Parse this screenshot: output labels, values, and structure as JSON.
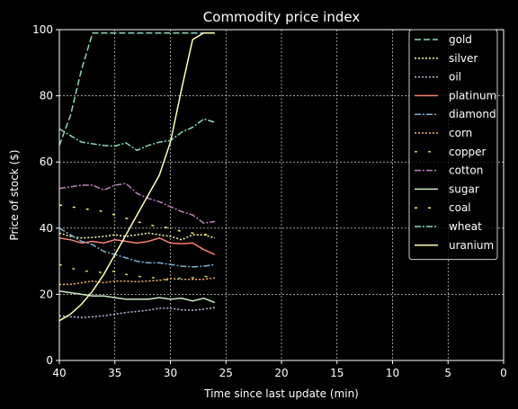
{
  "chart_data": {
    "type": "line",
    "title": "Commodity price index",
    "xlabel": "Time since last update (min)",
    "ylabel": "Price of stock ($)",
    "xlim": [
      40,
      0
    ],
    "ylim": [
      0,
      100
    ],
    "x_inverted": true,
    "grid": true,
    "legend_position": "top-right",
    "xticks": [
      40,
      35,
      30,
      25,
      20,
      15,
      10,
      5,
      0
    ],
    "yticks": [
      0,
      20,
      40,
      60,
      80,
      100
    ],
    "x": [
      40,
      39,
      38,
      37,
      36,
      35,
      34,
      33,
      32,
      31,
      30,
      29,
      28,
      27,
      26
    ],
    "series": [
      {
        "name": "gold",
        "color": "#8dd3c7",
        "dash": "dashed",
        "values": [
          65,
          74,
          88,
          99,
          99,
          99,
          99,
          99,
          99,
          99,
          99,
          99,
          99,
          99,
          99
        ]
      },
      {
        "name": "silver",
        "color": "#feffb3",
        "dash": "dotted",
        "values": [
          38.5,
          37.5,
          37,
          37.2,
          37.5,
          38,
          37.5,
          38,
          38.5,
          38,
          37.5,
          36.5,
          38,
          38,
          37
        ]
      },
      {
        "name": "oil",
        "color": "#bfbbd9",
        "dash": "dotted",
        "values": [
          13.5,
          13.2,
          13,
          13.2,
          13.5,
          14,
          14.5,
          14.8,
          15.2,
          15.8,
          15.8,
          15.3,
          15.2,
          15.5,
          16
        ]
      },
      {
        "name": "platinum",
        "color": "#fa8174",
        "dash": "solid",
        "values": [
          37,
          36.5,
          35.5,
          36,
          35.5,
          36.5,
          36,
          35.5,
          36,
          37,
          35.5,
          35.3,
          35.5,
          33.5,
          32
        ]
      },
      {
        "name": "diamond",
        "color": "#81b1d2",
        "dash": "dashdot",
        "values": [
          40,
          38,
          36,
          35,
          33,
          32,
          31,
          30,
          29.5,
          29.5,
          29,
          28.5,
          28.3,
          28.5,
          29
        ]
      },
      {
        "name": "corn",
        "color": "#fdb462",
        "dash": "dotted",
        "values": [
          23,
          23,
          23.5,
          24,
          23.5,
          24,
          24,
          23.8,
          24,
          24.2,
          24.8,
          24.5,
          24.5,
          24.5,
          25
        ]
      },
      {
        "name": "copper",
        "color": "#b3de69",
        "dash": "loosedash",
        "values": [
          29,
          28,
          27,
          27,
          26.5,
          27,
          26,
          25.5,
          25,
          25,
          24,
          25,
          25,
          25.5,
          25
        ]
      },
      {
        "name": "cotton",
        "color": "#bc82bd",
        "dash": "dashdot",
        "values": [
          52,
          52.5,
          53,
          53,
          51.5,
          53,
          53.5,
          50.5,
          49,
          48,
          46.5,
          45,
          44,
          41.5,
          42
        ]
      },
      {
        "name": "sugar",
        "color": "#ccebc4",
        "dash": "solid",
        "values": [
          21,
          20.5,
          20,
          19.5,
          19.5,
          19,
          18.5,
          18.5,
          18.5,
          19,
          18.5,
          18.8,
          18,
          18.8,
          17.5
        ]
      },
      {
        "name": "coal",
        "color": "#ffed6f",
        "dash": "loosedash",
        "values": [
          47,
          46.5,
          46,
          45.5,
          45,
          44,
          43,
          42,
          41,
          40.5,
          40,
          39,
          38.5,
          38,
          38.5
        ]
      },
      {
        "name": "wheat",
        "color": "#8dd3c7",
        "dash": "dashdot",
        "values": [
          70,
          68,
          66,
          65.5,
          65,
          64.8,
          65.8,
          63.5,
          65,
          66,
          66.5,
          69,
          70.5,
          73,
          72
        ]
      },
      {
        "name": "uranium",
        "color": "#feffb3",
        "dash": "solid",
        "values": [
          12,
          14,
          17,
          21,
          26,
          32,
          38,
          44,
          50,
          56,
          66,
          82,
          97,
          99,
          99
        ]
      }
    ]
  }
}
